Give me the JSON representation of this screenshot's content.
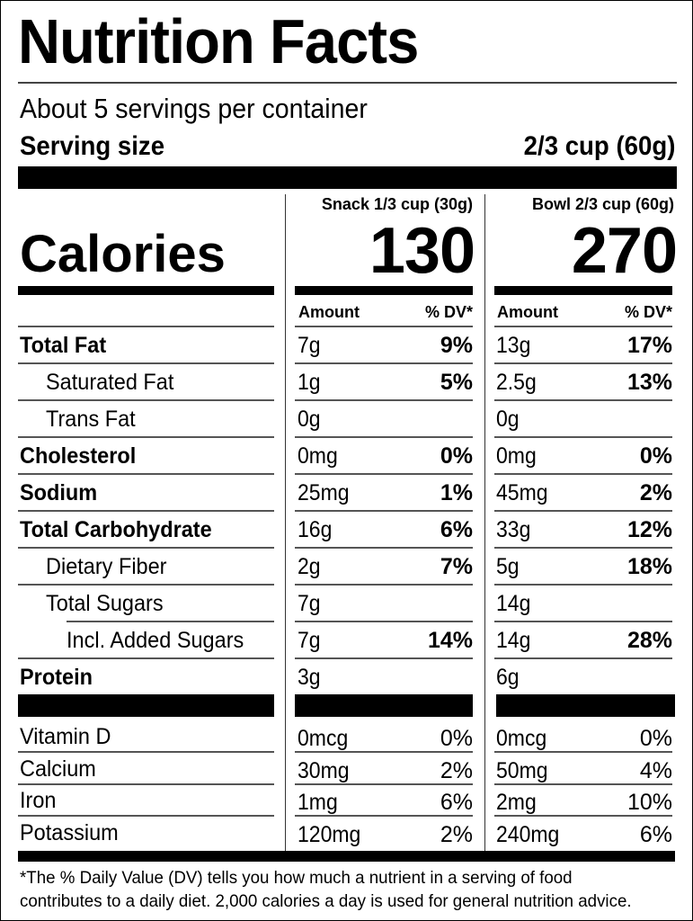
{
  "label": {
    "title": "Nutrition Facts",
    "servings_per_container": "About 5 servings per container",
    "serving_size_label": "Serving size",
    "serving_size_value": "2/3 cup (60g)",
    "calories_label": "Calories",
    "columns": [
      {
        "header": "Snack 1/3 cup (30g)",
        "calories": "130",
        "amount_header": "Amount",
        "dv_header": "% DV*"
      },
      {
        "header": "Bowl 2/3 cup (60g)",
        "calories": "270",
        "amount_header": "Amount",
        "dv_header": "% DV*"
      }
    ],
    "nutrients": [
      {
        "name": "Total Fat",
        "bold": true,
        "indent": 0,
        "snack_amount": "7g",
        "snack_dv": "9%",
        "bowl_amount": "13g",
        "bowl_dv": "17%"
      },
      {
        "name": "Saturated Fat",
        "bold": false,
        "indent": 1,
        "snack_amount": "1g",
        "snack_dv": "5%",
        "bowl_amount": "2.5g",
        "bowl_dv": "13%"
      },
      {
        "name": "Trans Fat",
        "bold": false,
        "indent": 1,
        "snack_amount": "0g",
        "snack_dv": "",
        "bowl_amount": "0g",
        "bowl_dv": ""
      },
      {
        "name": "Cholesterol",
        "bold": true,
        "indent": 0,
        "snack_amount": "0mg",
        "snack_dv": "0%",
        "bowl_amount": "0mg",
        "bowl_dv": "0%"
      },
      {
        "name": "Sodium",
        "bold": true,
        "indent": 0,
        "snack_amount": "25mg",
        "snack_dv": "1%",
        "bowl_amount": "45mg",
        "bowl_dv": "2%"
      },
      {
        "name": "Total Carbohydrate",
        "bold": true,
        "indent": 0,
        "snack_amount": "16g",
        "snack_dv": "6%",
        "bowl_amount": "33g",
        "bowl_dv": "12%"
      },
      {
        "name": "Dietary Fiber",
        "bold": false,
        "indent": 1,
        "snack_amount": "2g",
        "snack_dv": "7%",
        "bowl_amount": "5g",
        "bowl_dv": "18%"
      },
      {
        "name": "Total Sugars",
        "bold": false,
        "indent": 1,
        "snack_amount": "7g",
        "snack_dv": "",
        "bowl_amount": "14g",
        "bowl_dv": ""
      },
      {
        "name": "Incl. Added Sugars",
        "bold": false,
        "indent": 2,
        "snack_amount": "7g",
        "snack_dv": "14%",
        "bowl_amount": "14g",
        "bowl_dv": "28%"
      },
      {
        "name": "Protein",
        "bold": true,
        "indent": 0,
        "snack_amount": "3g",
        "snack_dv": "",
        "bowl_amount": "6g",
        "bowl_dv": ""
      }
    ],
    "vitamins": [
      {
        "name": "Vitamin D",
        "snack_amount": "0mcg",
        "snack_dv": "0%",
        "bowl_amount": "0mcg",
        "bowl_dv": "0%"
      },
      {
        "name": "Calcium",
        "snack_amount": "30mg",
        "snack_dv": "2%",
        "bowl_amount": "50mg",
        "bowl_dv": "4%"
      },
      {
        "name": "Iron",
        "snack_amount": "1mg",
        "snack_dv": "6%",
        "bowl_amount": "2mg",
        "bowl_dv": "10%"
      },
      {
        "name": "Potassium",
        "snack_amount": "120mg",
        "snack_dv": "2%",
        "bowl_amount": "240mg",
        "bowl_dv": "6%"
      }
    ],
    "footnote": [
      "*The % Daily Value (DV) tells you how much a nutrient in a serving of food",
      "contributes to a daily diet. 2,000 calories a day is used for general nutrition advice."
    ]
  }
}
